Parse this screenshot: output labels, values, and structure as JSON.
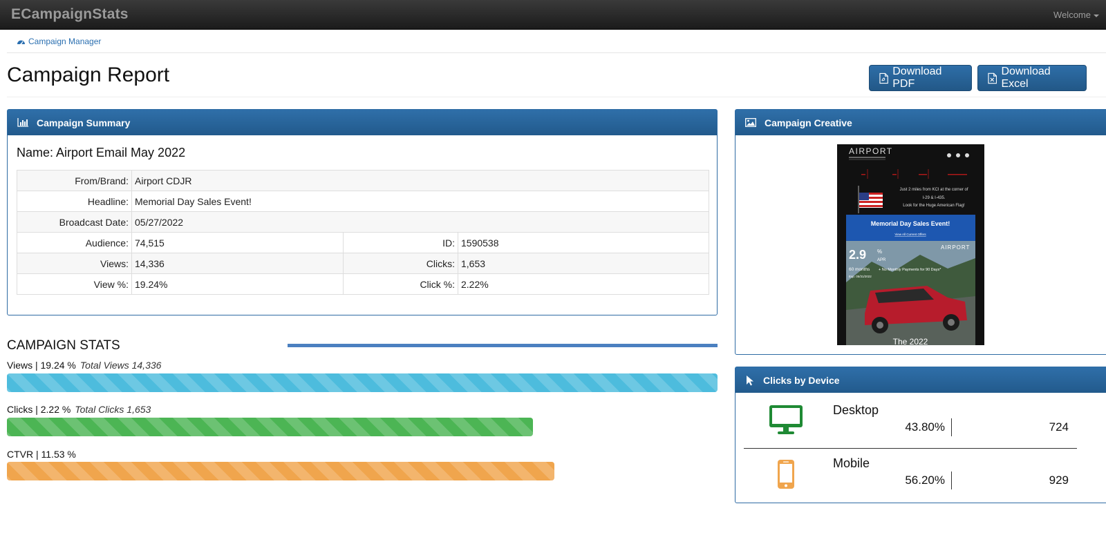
{
  "navbar": {
    "brand": "ECampaignStats",
    "welcome": "Welcome"
  },
  "breadcrumb": {
    "label": "Campaign Manager"
  },
  "header": {
    "title": "Campaign Report",
    "download_pdf": "Download PDF",
    "download_excel": "Download Excel"
  },
  "summary": {
    "heading": "Campaign Summary",
    "name_line": "Name: Airport Email May 2022",
    "rows": {
      "from_label": "From/Brand:",
      "from_value": "Airport CDJR",
      "headline_label": "Headline:",
      "headline_value": "Memorial Day Sales Event!",
      "date_label": "Broadcast Date:",
      "date_value": "05/27/2022",
      "audience_label": "Audience:",
      "audience_value": "74,515",
      "id_label": "ID:",
      "id_value": "1590538",
      "views_label": "Views:",
      "views_value": "14,336",
      "clicks_label": "Clicks:",
      "clicks_value": "1,653",
      "viewpct_label": "View %:",
      "viewpct_value": "19.24%",
      "clickpct_label": "Click %:",
      "clickpct_value": "2.22%"
    }
  },
  "stats": {
    "title": "CAMPAIGN STATS",
    "views": {
      "label": "Views | 19.24 %",
      "total": "Total Views 14,336",
      "fill_fraction": 1.0,
      "color": "#4dbcdd"
    },
    "clicks": {
      "label": "Clicks | 2.22 %",
      "total": "Total Clicks 1,653",
      "fill_fraction": 0.74,
      "color": "#4cb554"
    },
    "ctvr": {
      "label": "CTVR | 11.53 %",
      "fill_fraction": 0.77,
      "color": "#f0a54d"
    }
  },
  "creative": {
    "heading": "Campaign Creative",
    "email": {
      "logo": "AIRPORT",
      "info1": "Just 2 miles from KCI at the corner of",
      "info2": "I-29 & I-435.",
      "info3": "Look for the Huge American Flag!",
      "event": "Memorial Day Sales Event!",
      "offers_link": "View All Current Offers",
      "apr": "2.9",
      "apr_unit": "APR",
      "months": "60 months",
      "payments": "+ No Monthly Payments for 90 Days*",
      "exp": "Exp. 05/31/2022",
      "footer": "The 2022"
    }
  },
  "devices": {
    "heading": "Clicks by Device",
    "desktop": {
      "name": "Desktop",
      "pct": "43.80%",
      "count": "724",
      "color": "#1f8a34"
    },
    "mobile": {
      "name": "Mobile",
      "pct": "56.20%",
      "count": "929",
      "color": "#f0a54d"
    }
  },
  "colors": {
    "primary": "#2a65a0",
    "nav": "#222222"
  }
}
